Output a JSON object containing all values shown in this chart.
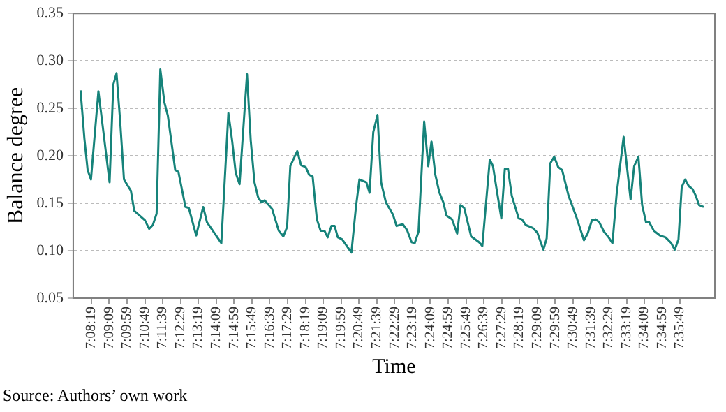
{
  "chart_data": {
    "type": "line",
    "xlabel": "Time",
    "ylabel": "Balance degree",
    "annotations": [
      "Source: Authors’ own work"
    ],
    "color": "#16837a",
    "marker": "none",
    "line_style": "solid",
    "grid": "y",
    "legend": false,
    "xlim": [
      7.1245,
      7.624
    ],
    "ylim": [
      0.05,
      0.35
    ],
    "yticks": [
      {
        "value": 0.05,
        "label": "0.05"
      },
      {
        "value": 0.1,
        "label": "0.10"
      },
      {
        "value": 0.15,
        "label": "0.15"
      },
      {
        "value": 0.2,
        "label": "0.20"
      },
      {
        "value": 0.25,
        "label": "0.25"
      },
      {
        "value": 0.3,
        "label": "0.30"
      },
      {
        "value": 0.35,
        "label": "0.35"
      }
    ],
    "xticks": [
      {
        "value": 7.13861,
        "label": "7:08:19"
      },
      {
        "value": 7.1525,
        "label": "7:09:09"
      },
      {
        "value": 7.16639,
        "label": "7:09:59"
      },
      {
        "value": 7.18028,
        "label": "7:10:49"
      },
      {
        "value": 7.19417,
        "label": "7:11:39"
      },
      {
        "value": 7.20806,
        "label": "7:12:29"
      },
      {
        "value": 7.22194,
        "label": "7:13:19"
      },
      {
        "value": 7.23583,
        "label": "7:14:09"
      },
      {
        "value": 7.24972,
        "label": "7:14:59"
      },
      {
        "value": 7.26361,
        "label": "7:15:49"
      },
      {
        "value": 7.2775,
        "label": "7:16:39"
      },
      {
        "value": 7.29139,
        "label": "7:17:29"
      },
      {
        "value": 7.30528,
        "label": "7:18:19"
      },
      {
        "value": 7.31917,
        "label": "7:19:09"
      },
      {
        "value": 7.33306,
        "label": "7:19:59"
      },
      {
        "value": 7.34694,
        "label": "7:20:49"
      },
      {
        "value": 7.36083,
        "label": "7:21:39"
      },
      {
        "value": 7.37472,
        "label": "7:22:29"
      },
      {
        "value": 7.38861,
        "label": "7:23:19"
      },
      {
        "value": 7.4025,
        "label": "7:24:09"
      },
      {
        "value": 7.41639,
        "label": "7:24:59"
      },
      {
        "value": 7.43028,
        "label": "7:25:49"
      },
      {
        "value": 7.44417,
        "label": "7:26:39"
      },
      {
        "value": 7.45806,
        "label": "7:27:29"
      },
      {
        "value": 7.47194,
        "label": "7:28:19"
      },
      {
        "value": 7.48583,
        "label": "7:29:09"
      },
      {
        "value": 7.49972,
        "label": "7:29:59"
      },
      {
        "value": 7.51361,
        "label": "7:30:49"
      },
      {
        "value": 7.5275,
        "label": "7:31:39"
      },
      {
        "value": 7.54139,
        "label": "7:32:29"
      },
      {
        "value": 7.55528,
        "label": "7:33:19"
      },
      {
        "value": 7.56917,
        "label": "7:34:09"
      },
      {
        "value": 7.58306,
        "label": "7:34:59"
      },
      {
        "value": 7.59694,
        "label": "7:35:49"
      }
    ],
    "x": [
      7.1302,
      7.1332,
      7.1357,
      7.1383,
      7.1441,
      7.1528,
      7.1557,
      7.1582,
      7.1611,
      7.164,
      7.1694,
      7.172,
      7.1803,
      7.1836,
      7.1865,
      7.1894,
      7.1923,
      7.1955,
      7.1982,
      7.2039,
      7.2064,
      7.2119,
      7.2145,
      7.2202,
      7.2257,
      7.2286,
      7.2398,
      7.2453,
      7.2482,
      7.251,
      7.254,
      7.2598,
      7.2627,
      7.2656,
      7.2685,
      7.2711,
      7.2736,
      7.2793,
      7.2845,
      7.2881,
      7.291,
      7.2935,
      7.2989,
      7.3019,
      7.3055,
      7.3081,
      7.3109,
      7.3142,
      7.3171,
      7.3201,
      7.3226,
      7.3255,
      7.328,
      7.3305,
      7.3338,
      7.3411,
      7.3446,
      7.3473,
      7.3527,
      7.3552,
      7.3581,
      7.3614,
      7.3642,
      7.3679,
      7.3734,
      7.3762,
      7.381,
      7.3843,
      7.3879,
      7.3904,
      7.3933,
      7.3977,
      7.4009,
      7.4034,
      7.4064,
      7.4096,
      7.4126,
      7.4151,
      7.4194,
      7.4234,
      7.426,
      7.4289,
      7.4343,
      7.4404,
      7.443,
      7.4488,
      7.4513,
      7.4543,
      7.4578,
      7.4605,
      7.463,
      7.4659,
      7.4713,
      7.4738,
      7.4768,
      7.4822,
      7.4858,
      7.4905,
      7.4931,
      7.4959,
      7.4989,
      7.5021,
      7.5051,
      7.5101,
      7.5166,
      7.5221,
      7.525,
      7.5283,
      7.5312,
      7.534,
      7.5377,
      7.5413,
      7.5443,
      7.5475,
      7.553,
      7.5584,
      7.5612,
      7.5645,
      7.5674,
      7.5704,
      7.5729,
      7.5765,
      7.5813,
      7.5856,
      7.59,
      7.5928,
      7.5957,
      7.5982,
      7.6009,
      7.6037,
      7.6066,
      7.6091,
      7.6117,
      7.6153
    ],
    "values": [
      0.269,
      0.218,
      0.185,
      0.175,
      0.268,
      0.172,
      0.275,
      0.287,
      0.235,
      0.175,
      0.163,
      0.142,
      0.132,
      0.123,
      0.127,
      0.139,
      0.291,
      0.256,
      0.242,
      0.185,
      0.183,
      0.146,
      0.145,
      0.116,
      0.146,
      0.13,
      0.108,
      0.245,
      0.216,
      0.182,
      0.17,
      0.286,
      0.216,
      0.172,
      0.156,
      0.151,
      0.153,
      0.144,
      0.121,
      0.115,
      0.125,
      0.189,
      0.205,
      0.19,
      0.188,
      0.18,
      0.178,
      0.133,
      0.121,
      0.121,
      0.114,
      0.126,
      0.126,
      0.114,
      0.112,
      0.098,
      0.146,
      0.175,
      0.172,
      0.161,
      0.225,
      0.243,
      0.172,
      0.151,
      0.138,
      0.126,
      0.128,
      0.122,
      0.109,
      0.108,
      0.12,
      0.236,
      0.189,
      0.215,
      0.18,
      0.161,
      0.151,
      0.137,
      0.133,
      0.118,
      0.148,
      0.145,
      0.115,
      0.109,
      0.105,
      0.196,
      0.189,
      0.163,
      0.134,
      0.186,
      0.186,
      0.158,
      0.134,
      0.133,
      0.127,
      0.124,
      0.119,
      0.101,
      0.113,
      0.192,
      0.199,
      0.188,
      0.185,
      0.158,
      0.134,
      0.111,
      0.118,
      0.132,
      0.133,
      0.13,
      0.12,
      0.114,
      0.108,
      0.159,
      0.22,
      0.154,
      0.189,
      0.199,
      0.148,
      0.13,
      0.13,
      0.121,
      0.116,
      0.114,
      0.108,
      0.101,
      0.112,
      0.167,
      0.175,
      0.168,
      0.165,
      0.158,
      0.148,
      0.146
    ]
  }
}
